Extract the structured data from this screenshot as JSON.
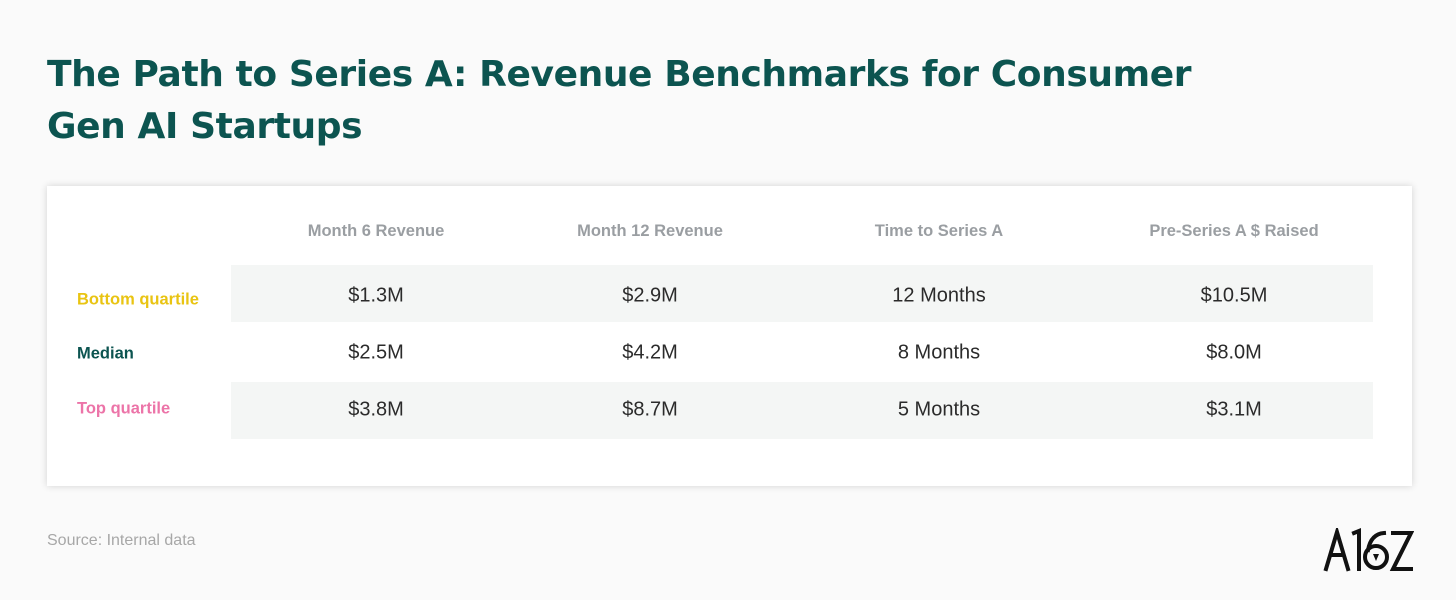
{
  "title": "The Path to Series A: Revenue Benchmarks for Consumer Gen AI Startups",
  "source": "Source: Internal data",
  "logo_text": "A16Z",
  "colors": {
    "title": "#0c5450",
    "bottom_quartile": "#e9c412",
    "median": "#0c5450",
    "top_quartile": "#ec74a8",
    "header": "#9a9ea2",
    "band": "#f4f6f5"
  },
  "chart_data": {
    "type": "table",
    "columns": [
      "Month 6 Revenue",
      "Month 12 Revenue",
      "Time to Series A",
      "Pre-Series A $ Raised"
    ],
    "rows": [
      {
        "label": "Bottom quartile",
        "values": [
          "$1.3M",
          "$2.9M",
          "12 Months",
          "$10.5M"
        ]
      },
      {
        "label": "Median",
        "values": [
          "$2.5M",
          "$4.2M",
          "8 Months",
          "$8.0M"
        ]
      },
      {
        "label": "Top quartile",
        "values": [
          "$3.8M",
          "$8.7M",
          "5 Months",
          "$3.1M"
        ]
      }
    ]
  }
}
